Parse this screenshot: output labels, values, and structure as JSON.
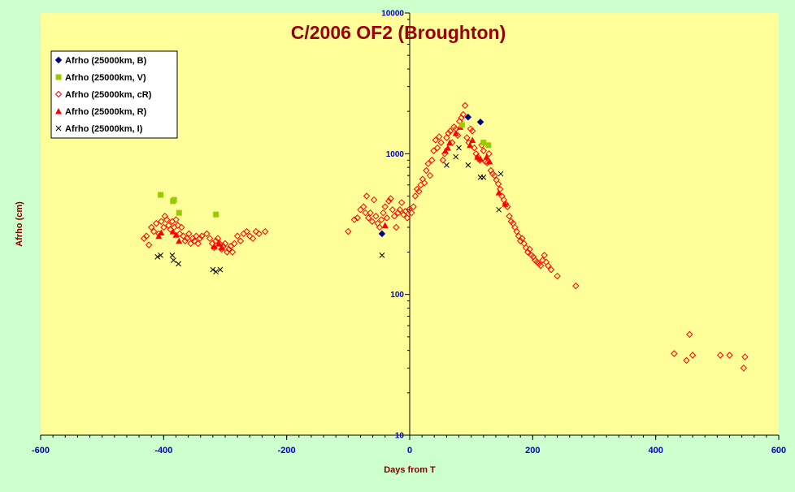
{
  "chart_data": {
    "type": "scatter",
    "title": "C/2006 OF2 (Broughton)",
    "xlabel": "Days from T",
    "ylabel": "Afrho (cm)",
    "xlim": [
      -600,
      600
    ],
    "ylim": [
      10,
      10000
    ],
    "y_scale": "log",
    "x_ticks": [
      -600,
      -400,
      -200,
      0,
      200,
      400,
      600
    ],
    "y_ticks": [
      10,
      100,
      1000,
      10000
    ],
    "legend_position": "top-left",
    "grid": false,
    "colors": {
      "plot_background": "#ffff99",
      "page_background": "#ccffcc",
      "title": "#990000",
      "axis_label": "#800000",
      "tick_label": "#0000cc"
    },
    "series": [
      {
        "name": "Afrho (25000km, B)",
        "marker": "diamond-filled",
        "color": "#000080",
        "points": [
          [
            -45,
            270
          ],
          [
            95,
            1820
          ],
          [
            115,
            1680
          ]
        ]
      },
      {
        "name": "Afrho (25000km, V)",
        "marker": "square-filled",
        "color": "#99cc00",
        "points": [
          [
            -405,
            510
          ],
          [
            -385,
            460
          ],
          [
            -383,
            470
          ],
          [
            -375,
            380
          ],
          [
            -315,
            370
          ],
          [
            85,
            1600
          ],
          [
            120,
            1200
          ],
          [
            128,
            1150
          ]
        ]
      },
      {
        "name": "Afrho (25000km, cR)",
        "marker": "diamond-open",
        "color": "#ff0000",
        "points": [
          [
            -432,
            250
          ],
          [
            -428,
            260
          ],
          [
            -424,
            225
          ],
          [
            -420,
            300
          ],
          [
            -416,
            280
          ],
          [
            -412,
            320
          ],
          [
            -408,
            270
          ],
          [
            -404,
            330
          ],
          [
            -400,
            300
          ],
          [
            -398,
            360
          ],
          [
            -395,
            340
          ],
          [
            -392,
            310
          ],
          [
            -389,
            290
          ],
          [
            -386,
            330
          ],
          [
            -383,
            300
          ],
          [
            -380,
            340
          ],
          [
            -377,
            310
          ],
          [
            -374,
            270
          ],
          [
            -371,
            300
          ],
          [
            -368,
            260
          ],
          [
            -365,
            240
          ],
          [
            -362,
            250
          ],
          [
            -359,
            270
          ],
          [
            -356,
            230
          ],
          [
            -353,
            250
          ],
          [
            -350,
            240
          ],
          [
            -347,
            260
          ],
          [
            -344,
            230
          ],
          [
            -341,
            250
          ],
          [
            -338,
            260
          ],
          [
            -330,
            270
          ],
          [
            -325,
            250
          ],
          [
            -321,
            230
          ],
          [
            -318,
            215
          ],
          [
            -315,
            240
          ],
          [
            -312,
            250
          ],
          [
            -309,
            230
          ],
          [
            -306,
            210
          ],
          [
            -303,
            220
          ],
          [
            -300,
            230
          ],
          [
            -297,
            200
          ],
          [
            -294,
            210
          ],
          [
            -291,
            220
          ],
          [
            -288,
            200
          ],
          [
            -285,
            230
          ],
          [
            -280,
            260
          ],
          [
            -275,
            240
          ],
          [
            -270,
            270
          ],
          [
            -265,
            280
          ],
          [
            -260,
            260
          ],
          [
            -255,
            250
          ],
          [
            -250,
            280
          ],
          [
            -245,
            270
          ],
          [
            -235,
            280
          ],
          [
            -100,
            280
          ],
          [
            -90,
            340
          ],
          [
            -85,
            350
          ],
          [
            -80,
            400
          ],
          [
            -75,
            420
          ],
          [
            -72,
            380
          ],
          [
            -70,
            500
          ],
          [
            -67,
            350
          ],
          [
            -64,
            380
          ],
          [
            -61,
            330
          ],
          [
            -58,
            470
          ],
          [
            -55,
            360
          ],
          [
            -52,
            320
          ],
          [
            -49,
            300
          ],
          [
            -46,
            340
          ],
          [
            -43,
            380
          ],
          [
            -40,
            420
          ],
          [
            -37,
            350
          ],
          [
            -34,
            460
          ],
          [
            -31,
            480
          ],
          [
            -28,
            400
          ],
          [
            -25,
            360
          ],
          [
            -22,
            300
          ],
          [
            -19,
            380
          ],
          [
            -16,
            400
          ],
          [
            -13,
            450
          ],
          [
            -10,
            370
          ],
          [
            -7,
            390
          ],
          [
            -4,
            350
          ],
          [
            -1,
            400
          ],
          [
            3,
            380
          ],
          [
            6,
            420
          ],
          [
            9,
            500
          ],
          [
            12,
            560
          ],
          [
            15,
            540
          ],
          [
            18,
            600
          ],
          [
            21,
            660
          ],
          [
            24,
            620
          ],
          [
            27,
            760
          ],
          [
            30,
            850
          ],
          [
            33,
            700
          ],
          [
            36,
            900
          ],
          [
            39,
            1050
          ],
          [
            42,
            1250
          ],
          [
            45,
            1100
          ],
          [
            48,
            1320
          ],
          [
            51,
            1200
          ],
          [
            54,
            900
          ],
          [
            57,
            1000
          ],
          [
            60,
            1300
          ],
          [
            63,
            1400
          ],
          [
            66,
            1450
          ],
          [
            69,
            1200
          ],
          [
            72,
            1550
          ],
          [
            75,
            1500
          ],
          [
            78,
            1350
          ],
          [
            81,
            1700
          ],
          [
            84,
            1800
          ],
          [
            87,
            1900
          ],
          [
            90,
            2200
          ],
          [
            93,
            1300
          ],
          [
            96,
            1200
          ],
          [
            99,
            1500
          ],
          [
            102,
            1450
          ],
          [
            105,
            1100
          ],
          [
            108,
            1000
          ],
          [
            111,
            950
          ],
          [
            114,
            900
          ],
          [
            117,
            1150
          ],
          [
            120,
            1050
          ],
          [
            123,
            880
          ],
          [
            126,
            860
          ],
          [
            129,
            1000
          ],
          [
            132,
            760
          ],
          [
            135,
            720
          ],
          [
            138,
            700
          ],
          [
            141,
            650
          ],
          [
            144,
            610
          ],
          [
            147,
            560
          ],
          [
            150,
            500
          ],
          [
            153,
            470
          ],
          [
            156,
            440
          ],
          [
            159,
            420
          ],
          [
            162,
            360
          ],
          [
            165,
            330
          ],
          [
            168,
            320
          ],
          [
            171,
            300
          ],
          [
            174,
            280
          ],
          [
            177,
            260
          ],
          [
            180,
            240
          ],
          [
            183,
            250
          ],
          [
            186,
            230
          ],
          [
            189,
            215
          ],
          [
            192,
            200
          ],
          [
            195,
            210
          ],
          [
            198,
            190
          ],
          [
            201,
            185
          ],
          [
            204,
            175
          ],
          [
            207,
            170
          ],
          [
            210,
            165
          ],
          [
            213,
            160
          ],
          [
            216,
            175
          ],
          [
            219,
            190
          ],
          [
            222,
            170
          ],
          [
            225,
            160
          ],
          [
            230,
            150
          ],
          [
            240,
            135
          ],
          [
            270,
            115
          ],
          [
            430,
            38
          ],
          [
            450,
            34
          ],
          [
            455,
            52
          ],
          [
            460,
            37
          ],
          [
            505,
            37
          ],
          [
            520,
            37
          ],
          [
            543,
            30
          ],
          [
            545,
            36
          ]
        ]
      },
      {
        "name": "Afrho (25000km, R)",
        "marker": "triangle-filled",
        "color": "#ff0000",
        "points": [
          [
            -408,
            260
          ],
          [
            -404,
            275
          ],
          [
            -385,
            280
          ],
          [
            -380,
            265
          ],
          [
            -375,
            240
          ],
          [
            -318,
            220
          ],
          [
            -310,
            230
          ],
          [
            -305,
            215
          ],
          [
            -40,
            310
          ],
          [
            58,
            1050
          ],
          [
            62,
            1100
          ],
          [
            65,
            1200
          ],
          [
            75,
            1400
          ],
          [
            82,
            1550
          ],
          [
            98,
            1150
          ],
          [
            102,
            1250
          ],
          [
            110,
            950
          ],
          [
            115,
            920
          ],
          [
            125,
            950
          ],
          [
            130,
            880
          ],
          [
            145,
            530
          ],
          [
            155,
            440
          ]
        ]
      },
      {
        "name": "Afrho (25000km, I)",
        "marker": "x",
        "color": "#000000",
        "points": [
          [
            -410,
            185
          ],
          [
            -405,
            190
          ],
          [
            -386,
            190
          ],
          [
            -384,
            175
          ],
          [
            -376,
            165
          ],
          [
            -320,
            150
          ],
          [
            -315,
            145
          ],
          [
            -308,
            150
          ],
          [
            -45,
            190
          ],
          [
            60,
            830
          ],
          [
            75,
            950
          ],
          [
            80,
            1100
          ],
          [
            95,
            830
          ],
          [
            115,
            680
          ],
          [
            120,
            680
          ],
          [
            148,
            720
          ],
          [
            145,
            400
          ]
        ]
      }
    ]
  }
}
